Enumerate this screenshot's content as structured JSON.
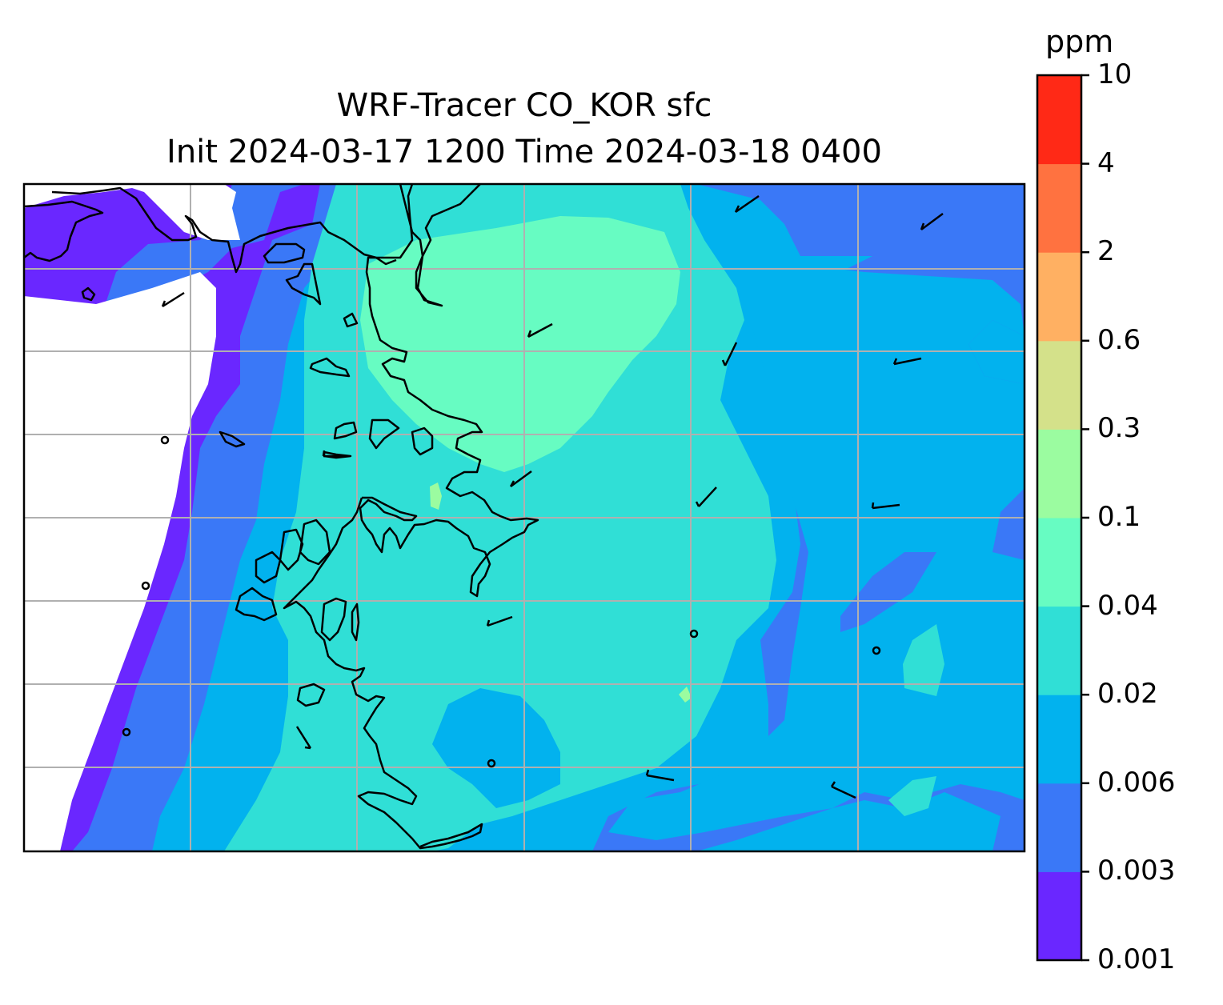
{
  "title": {
    "line1": "WRF-Tracer CO_KOR sfc",
    "line2": "Init 2024-03-17 1200 Time 2024-03-18 0400"
  },
  "colorbar": {
    "unit": "ppm",
    "levels": [
      "0.001",
      "0.003",
      "0.006",
      "0.02",
      "0.04",
      "0.1",
      "0.3",
      "0.6",
      "2",
      "4",
      "10"
    ],
    "colors": [
      "#6a27ff",
      "#3a78f7",
      "#02b2ee",
      "#30dfd6",
      "#67fcc2",
      "#9bfca0",
      "#d4e18a",
      "#ffb062",
      "#ff7240",
      "#ff2916"
    ]
  },
  "map": {
    "land_color": "#ffffff",
    "coastline_color": "#000000",
    "gridline_color": "#b0b0b0",
    "gridlines": true,
    "wind_barbs": true
  }
}
